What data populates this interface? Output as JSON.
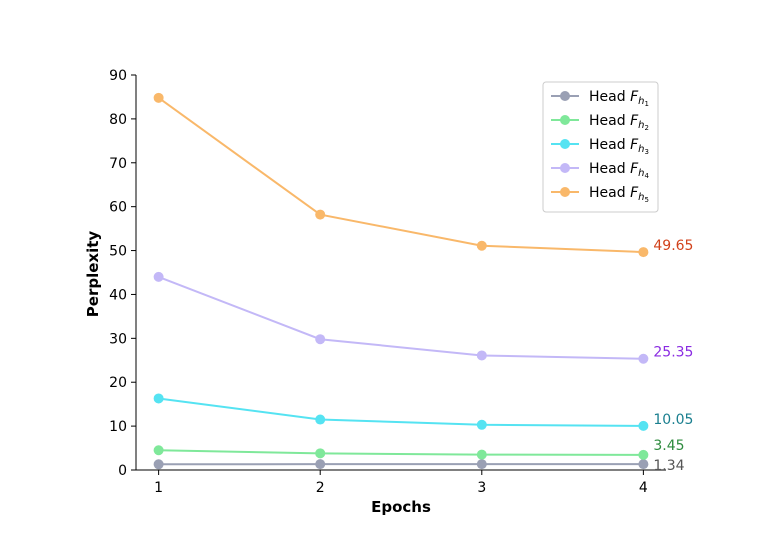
{
  "chart_data": {
    "type": "line",
    "xlabel": "Epochs",
    "ylabel": "Perplexity",
    "x": [
      1,
      2,
      3,
      4
    ],
    "x_ticks": [
      "1",
      "2",
      "3",
      "4"
    ],
    "ylim": [
      0,
      90
    ],
    "y_ticks": [
      "0",
      "10",
      "20",
      "30",
      "40",
      "50",
      "60",
      "70",
      "80",
      "90"
    ],
    "grid": false,
    "legend_position": "top-right",
    "series": [
      {
        "name": "Head F",
        "subscript": "h",
        "subsub": "1",
        "values": [
          1.3,
          1.34,
          1.34,
          1.34
        ],
        "color": "#9aa0b4",
        "end_label": "1.34",
        "end_label_color": "#555555"
      },
      {
        "name": "Head F",
        "subscript": "h",
        "subsub": "2",
        "values": [
          4.5,
          3.8,
          3.5,
          3.45
        ],
        "color": "#7fe89a",
        "end_label": "3.45",
        "end_label_color": "#2e8b3e"
      },
      {
        "name": "Head F",
        "subscript": "h",
        "subsub": "3",
        "values": [
          16.3,
          11.5,
          10.3,
          10.05
        ],
        "color": "#55e3f2",
        "end_label": "10.05",
        "end_label_color": "#1a7f8f"
      },
      {
        "name": "Head F",
        "subscript": "h",
        "subsub": "4",
        "values": [
          44.0,
          29.8,
          26.1,
          25.35
        ],
        "color": "#c3b8f7",
        "end_label": "25.35",
        "end_label_color": "#8a2be2"
      },
      {
        "name": "Head F",
        "subscript": "h",
        "subsub": "5",
        "values": [
          84.8,
          58.2,
          51.1,
          49.65
        ],
        "color": "#f9b86a",
        "end_label": "49.65",
        "end_label_color": "#d2421b"
      }
    ]
  }
}
